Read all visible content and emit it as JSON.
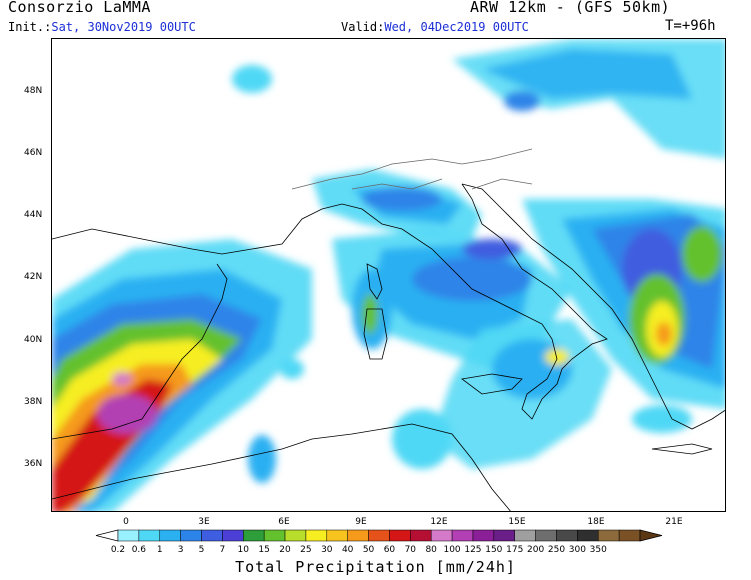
{
  "header": {
    "title": "Consorzio LaMMA",
    "model": "ARW 12km - (GFS 50km)",
    "init_label": "Init.:",
    "init_value": "Sat, 30Nov2019 00UTC",
    "valid_label": "Valid:",
    "valid_value": "Wed, 04Dec2019 00UTC",
    "forecast_step": "T=+96h"
  },
  "map": {
    "lat_labels": [
      "48N",
      "46N",
      "44N",
      "42N",
      "40N",
      "38N",
      "36N"
    ],
    "lon_labels": [
      "0",
      "3E",
      "6E",
      "9E",
      "12E",
      "15E",
      "18E",
      "21E"
    ]
  },
  "colorbar": {
    "title": "Total Precipitation [mm/24h]",
    "labels": [
      "0.2",
      "0.6",
      "1",
      "3",
      "5",
      "7",
      "10",
      "15",
      "20",
      "25",
      "30",
      "40",
      "50",
      "60",
      "70",
      "80",
      "100",
      "125",
      "150",
      "175",
      "200",
      "250",
      "300",
      "350"
    ],
    "colors": [
      "#99f0ff",
      "#4fd8f5",
      "#2bb0f2",
      "#2d84e8",
      "#3f5de0",
      "#4b3fd6",
      "#2e9e3a",
      "#63c12e",
      "#b8dd2a",
      "#f6ee21",
      "#f7c41f",
      "#f59a1b",
      "#e5521a",
      "#d41616",
      "#b60f34",
      "#d47ac8",
      "#b23fb3",
      "#8a1f98",
      "#6a1e87",
      "#9f9f9f",
      "#6e6e6e",
      "#494949",
      "#2f2f2f",
      "#8c6a3b",
      "#7a5125",
      "#5c3713"
    ],
    "legend_colors": [
      "#99f0ff",
      "#4fd8f5",
      "#2bb0f2",
      "#2d84e8",
      "#3f5de0",
      "#4b3fd6",
      "#2e9e3a",
      "#63c12e",
      "#b8dd2a",
      "#f6ee21",
      "#f7c41f",
      "#f59a1b",
      "#e5521a",
      "#d41616",
      "#b60f34",
      "#d47ac8",
      "#b23fb3",
      "#8a1f98",
      "#6a1e87",
      "#9f9f9f",
      "#6e6e6e",
      "#494949",
      "#2f2f2f",
      "#8c6a3b",
      "#7a5125"
    ]
  }
}
